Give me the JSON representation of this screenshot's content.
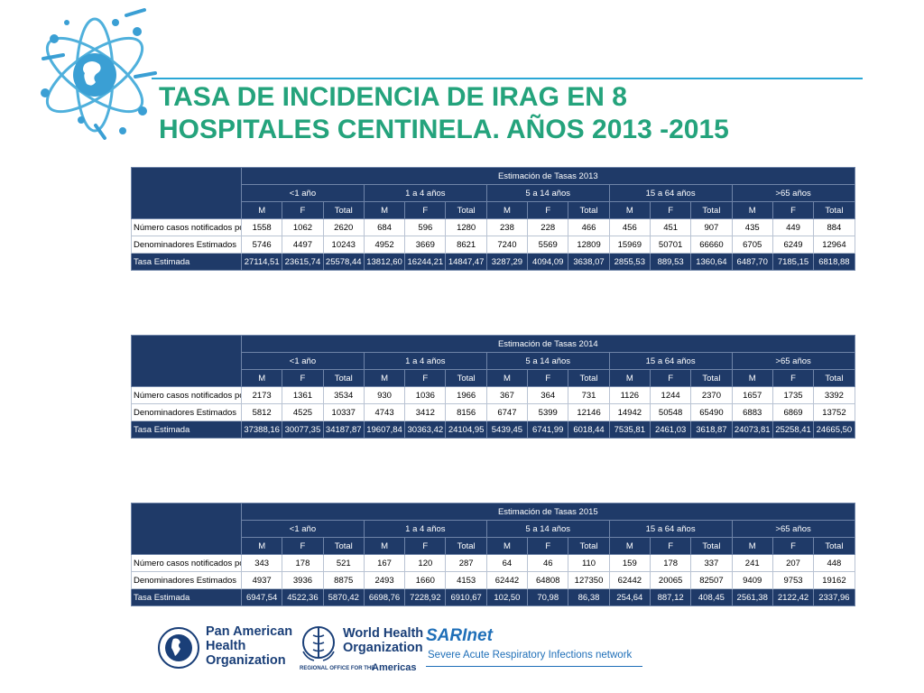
{
  "title": {
    "line1": "TASA DE INCIDENCIA DE IRAG EN 8",
    "line2": "HOSPITALES  CENTINELA. AÑOS 2013 -2015"
  },
  "colors": {
    "title": "#24a37c",
    "table_header": "#1f3a68",
    "accent": "#2aa7d6"
  },
  "tables": [
    {
      "heading": "Estimación de Tasas 2013",
      "groups": [
        "<1 año",
        "1 a 4 años",
        "5 a 14 años",
        "15 a 64 años",
        ">65 años"
      ],
      "subheaders": [
        "M",
        "F",
        "Total"
      ],
      "rows": [
        {
          "label": "Número casos notificados por IRAG",
          "values": [
            "1558",
            "1062",
            "2620",
            "684",
            "596",
            "1280",
            "238",
            "228",
            "466",
            "456",
            "451",
            "907",
            "435",
            "449",
            "884"
          ]
        },
        {
          "label": "Denominadores Estimados",
          "values": [
            "5746",
            "4497",
            "10243",
            "4952",
            "3669",
            "8621",
            "7240",
            "5569",
            "12809",
            "15969",
            "50701",
            "66660",
            "6705",
            "6249",
            "12964"
          ]
        },
        {
          "label": "Tasa Estimada",
          "values": [
            "27114,51",
            "23615,74",
            "25578,44",
            "13812,60",
            "16244,21",
            "14847,47",
            "3287,29",
            "4094,09",
            "3638,07",
            "2855,53",
            "889,53",
            "1360,64",
            "6487,70",
            "7185,15",
            "6818,88"
          ]
        }
      ]
    },
    {
      "heading": "Estimación de Tasas 2014",
      "groups": [
        "<1 año",
        "1 a 4 años",
        "5 a 14 años",
        "15 a 64 años",
        ">65 años"
      ],
      "subheaders": [
        "M",
        "F",
        "Total"
      ],
      "rows": [
        {
          "label": "Número casos notificados por IRAG",
          "values": [
            "2173",
            "1361",
            "3534",
            "930",
            "1036",
            "1966",
            "367",
            "364",
            "731",
            "1126",
            "1244",
            "2370",
            "1657",
            "1735",
            "3392"
          ]
        },
        {
          "label": "Denominadores Estimados",
          "values": [
            "5812",
            "4525",
            "10337",
            "4743",
            "3412",
            "8156",
            "6747",
            "5399",
            "12146",
            "14942",
            "50548",
            "65490",
            "6883",
            "6869",
            "13752"
          ]
        },
        {
          "label": "Tasa Estimada",
          "values": [
            "37388,16",
            "30077,35",
            "34187,87",
            "19607,84",
            "30363,42",
            "24104,95",
            "5439,45",
            "6741,99",
            "6018,44",
            "7535,81",
            "2461,03",
            "3618,87",
            "24073,81",
            "25258,41",
            "24665,50"
          ]
        }
      ]
    },
    {
      "heading": "Estimación de Tasas 2015",
      "groups": [
        "<1 año",
        "1 a 4 años",
        "5 a 14 años",
        "15 a 64 años",
        ">65 años"
      ],
      "subheaders": [
        "M",
        "F",
        "Total"
      ],
      "rows": [
        {
          "label": "Número casos notificados por IRAG",
          "values": [
            "343",
            "178",
            "521",
            "167",
            "120",
            "287",
            "64",
            "46",
            "110",
            "159",
            "178",
            "337",
            "241",
            "207",
            "448"
          ]
        },
        {
          "label": "Denominadores Estimados",
          "values": [
            "4937",
            "3936",
            "8875",
            "2493",
            "1660",
            "4153",
            "62442",
            "64808",
            "127350",
            "62442",
            "20065",
            "82507",
            "9409",
            "9753",
            "19162"
          ]
        },
        {
          "label": "Tasa Estimada",
          "values": [
            "6947,54",
            "4522,36",
            "5870,42",
            "6698,76",
            "7228,92",
            "6910,67",
            "102,50",
            "70,98",
            "86,38",
            "254,64",
            "887,12",
            "408,45",
            "2561,38",
            "2122,42",
            "2337,96"
          ]
        }
      ]
    }
  ],
  "footer": {
    "paho": {
      "line1": "Pan American",
      "line2": "Health",
      "line3": "Organization"
    },
    "who": {
      "line1": "World Health",
      "line2": "Organization",
      "sub": "REGIONAL OFFICE FOR THE",
      "region": "Americas"
    },
    "sari": {
      "name": "SARInet",
      "tagline": "Severe Acute Respiratory Infections network"
    }
  },
  "icons": [
    "globe-emblem-icon",
    "paho-emblem-icon",
    "who-emblem-icon"
  ]
}
